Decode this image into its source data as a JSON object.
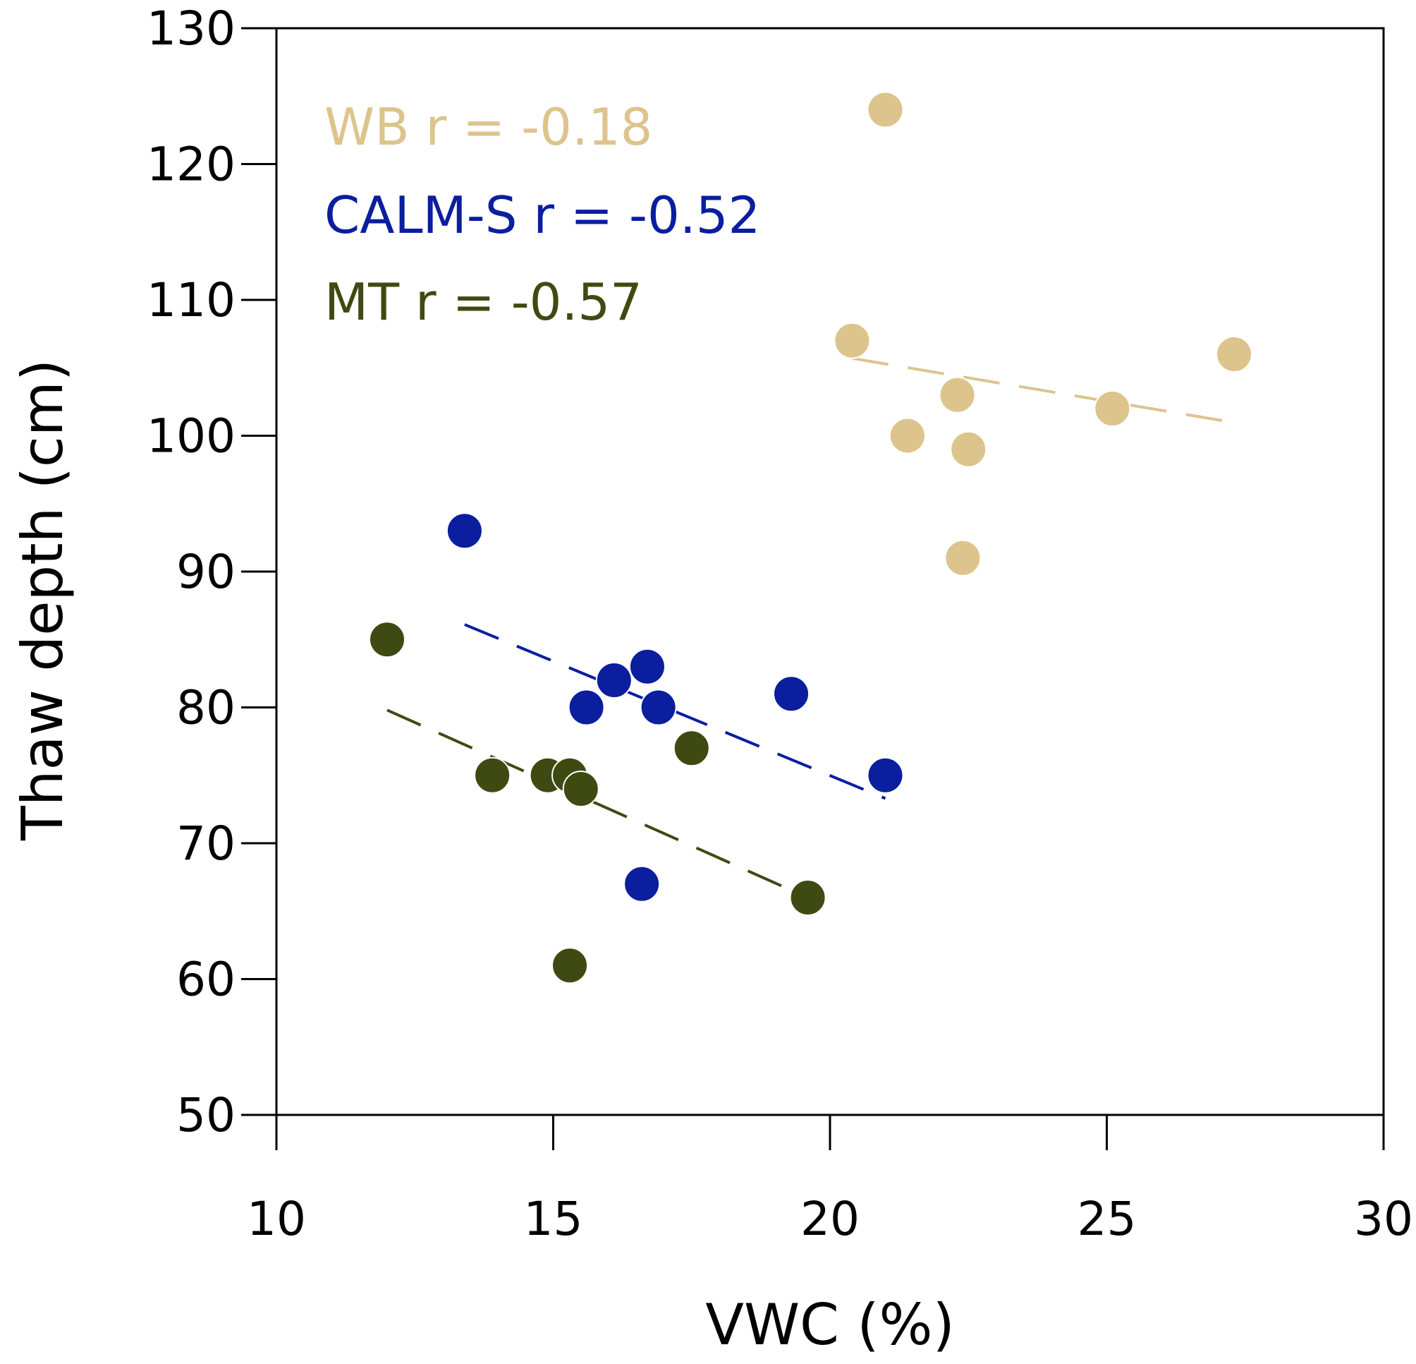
{
  "chart_data": {
    "type": "scatter",
    "xlabel": "VWC (%)",
    "ylabel": "Thaw depth (cm)",
    "xlim": [
      10,
      30
    ],
    "ylim": [
      50,
      130
    ],
    "xticks": [
      "10",
      "15",
      "20",
      "25",
      "30"
    ],
    "yticks": [
      "50",
      "60",
      "70",
      "80",
      "90",
      "100",
      "110",
      "120",
      "130"
    ],
    "grid": false,
    "legend_position": "top-left",
    "series": [
      {
        "key": "WB",
        "legend_label": "WB r = -0.18",
        "color": "#DCC48C",
        "points": [
          {
            "x": 21.0,
            "y": 124
          },
          {
            "x": 20.4,
            "y": 107
          },
          {
            "x": 22.3,
            "y": 103
          },
          {
            "x": 21.4,
            "y": 100
          },
          {
            "x": 22.5,
            "y": 99
          },
          {
            "x": 22.4,
            "y": 91
          },
          {
            "x": 25.1,
            "y": 102
          },
          {
            "x": 27.3,
            "y": 106
          }
        ],
        "trend": {
          "x": [
            20.4,
            27.4
          ],
          "y": [
            105.7,
            100.9
          ],
          "style": "dashed"
        }
      },
      {
        "key": "CALM-S",
        "legend_label": "CALM-S r = -0.52",
        "color": "#0A1E9E",
        "points": [
          {
            "x": 13.4,
            "y": 93
          },
          {
            "x": 15.6,
            "y": 80
          },
          {
            "x": 16.1,
            "y": 82
          },
          {
            "x": 16.7,
            "y": 83
          },
          {
            "x": 16.9,
            "y": 80
          },
          {
            "x": 19.3,
            "y": 81
          },
          {
            "x": 21.0,
            "y": 75
          },
          {
            "x": 16.6,
            "y": 67
          }
        ],
        "trend": {
          "x": [
            13.4,
            21.0
          ],
          "y": [
            86.1,
            73.3
          ],
          "style": "dashed"
        }
      },
      {
        "key": "MT",
        "legend_label": "MT r = -0.57",
        "color": "#3F4A12",
        "points": [
          {
            "x": 12.0,
            "y": 85
          },
          {
            "x": 13.9,
            "y": 75
          },
          {
            "x": 14.9,
            "y": 75
          },
          {
            "x": 15.3,
            "y": 75
          },
          {
            "x": 15.5,
            "y": 74
          },
          {
            "x": 17.5,
            "y": 77
          },
          {
            "x": 19.6,
            "y": 66
          },
          {
            "x": 15.3,
            "y": 61
          }
        ],
        "trend": {
          "x": [
            12.0,
            19.6
          ],
          "y": [
            79.8,
            66.0
          ],
          "style": "dashed"
        }
      }
    ]
  }
}
